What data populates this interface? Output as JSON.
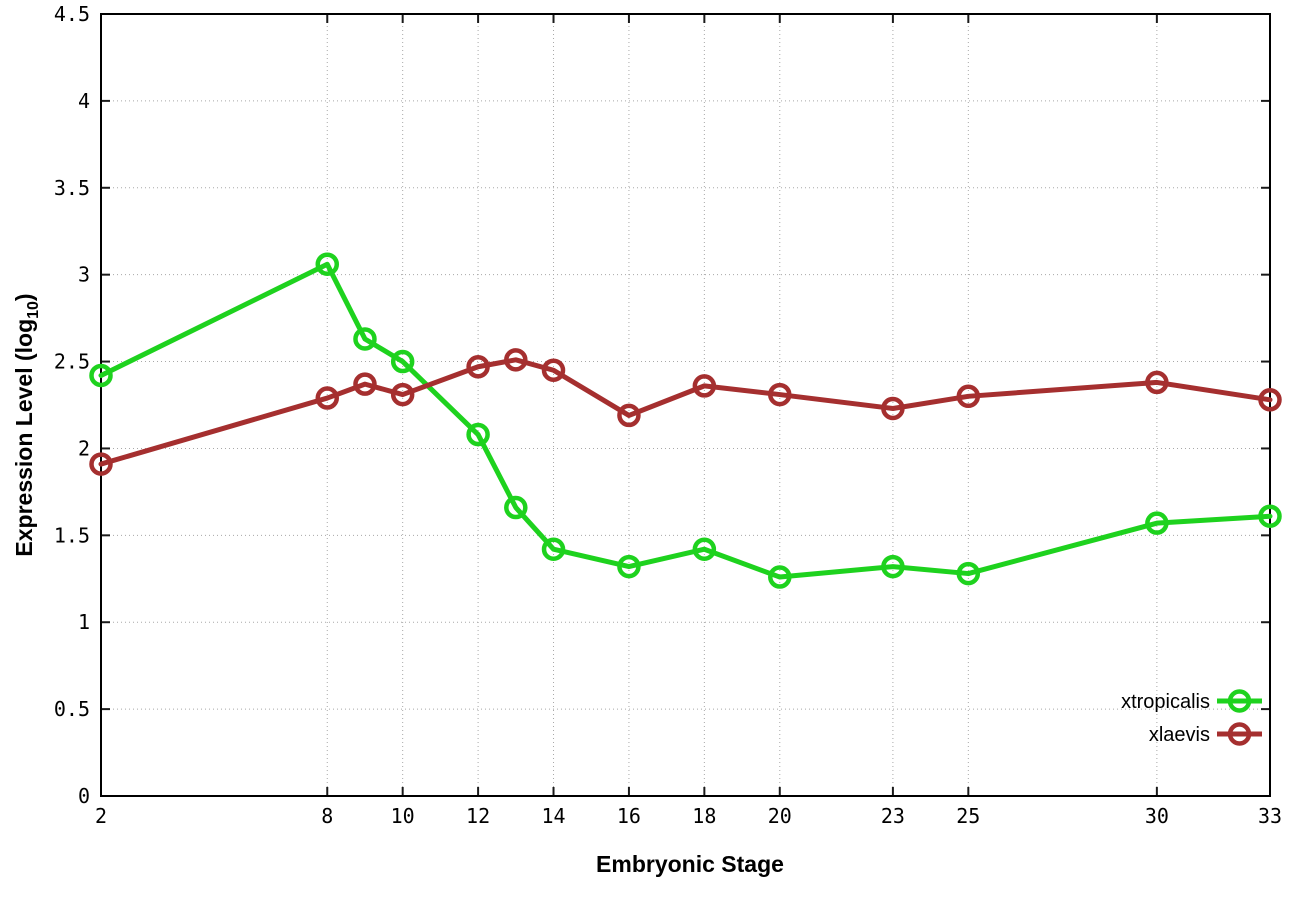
{
  "chart_data": {
    "type": "line",
    "title": "",
    "xlabel": "Embryonic Stage",
    "ylabel": "Expression Level (log10)",
    "ylabel_pre": "Expression Level (log",
    "ylabel_sub": "10",
    "ylabel_post": ")",
    "xlim": [
      2,
      33
    ],
    "ylim": [
      0,
      4.5
    ],
    "x_ticks": [
      2,
      8,
      10,
      12,
      14,
      16,
      18,
      20,
      23,
      25,
      30,
      33
    ],
    "x_tick_labels": [
      "2",
      "8",
      "10",
      "12",
      "14",
      "16",
      "18",
      "20",
      "23",
      "25",
      "30",
      "33"
    ],
    "y_ticks": [
      0,
      0.5,
      1,
      1.5,
      2,
      2.5,
      3,
      3.5,
      4,
      4.5
    ],
    "y_tick_labels": [
      "0",
      "0.5",
      "1",
      "1.5",
      "2",
      "2.5",
      "3",
      "3.5",
      "4",
      "4.5"
    ],
    "grid": true,
    "grid_style": "dotted",
    "legend_position": "bottom-right",
    "x": [
      2,
      8,
      9,
      10,
      12,
      13,
      14,
      16,
      18,
      20,
      23,
      25,
      30,
      33
    ],
    "series": [
      {
        "name": "xtropicalis",
        "color": "#1ed21e",
        "marker": "open-circle",
        "values": [
          2.42,
          3.06,
          2.63,
          2.5,
          2.08,
          1.66,
          1.42,
          1.32,
          1.42,
          1.26,
          1.32,
          1.28,
          1.57,
          1.61
        ]
      },
      {
        "name": "xlaevis",
        "color": "#a52f2f",
        "marker": "open-circle",
        "values": [
          1.91,
          2.29,
          2.37,
          2.31,
          2.47,
          2.51,
          2.45,
          2.19,
          2.36,
          2.31,
          2.23,
          2.3,
          2.38,
          2.28
        ]
      }
    ],
    "colors": {
      "background": "#ffffff",
      "border": "#000000",
      "grid": "#a8a8a8"
    }
  }
}
